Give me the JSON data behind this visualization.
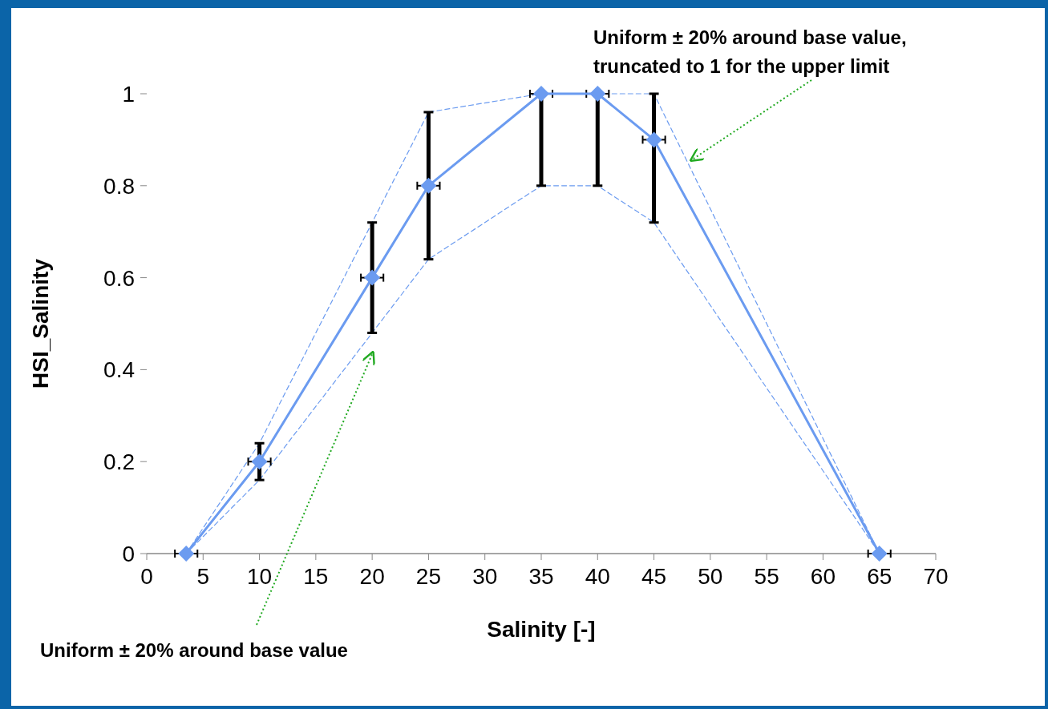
{
  "chart_data": {
    "type": "line",
    "xlabel": "Salinity [-]",
    "ylabel": "HSI_Salinity",
    "xlim": [
      0,
      70
    ],
    "xticks": [
      0,
      5,
      10,
      15,
      20,
      25,
      30,
      35,
      40,
      45,
      50,
      55,
      60,
      65,
      70
    ],
    "ylim": [
      0,
      1
    ],
    "yticks": [
      0,
      {
        "value": 0.2,
        "label": "0.2"
      },
      {
        "value": 0.4,
        "label": "0.4"
      },
      {
        "value": 0.6,
        "label": "0.6"
      },
      {
        "value": 0.8,
        "label": "0.8"
      },
      1
    ],
    "grid": false,
    "series": [
      {
        "color": "#6b9bf0",
        "line_style": "dashed",
        "x": [
          3.5,
          10,
          20,
          25,
          35,
          40,
          45,
          65
        ],
        "values": [
          0,
          0.24,
          0.72,
          0.96,
          1,
          1,
          1,
          0
        ]
      },
      {
        "color": "#6b9bf0",
        "line_style": "dashed",
        "x": [
          3.5,
          10,
          20,
          25,
          35,
          40,
          45,
          65
        ],
        "values": [
          0,
          0.16,
          0.48,
          0.64,
          0.8,
          0.8,
          0.72,
          0
        ]
      },
      {
        "color": "#6b9bf0",
        "marker": "diamond",
        "line_style": "solid",
        "x": [
          3.5,
          10,
          20,
          25,
          35,
          40,
          45,
          65
        ],
        "values": [
          0,
          0.2,
          0.6,
          0.8,
          1,
          1,
          0.9,
          0
        ],
        "errors": [
          null,
          [
            0.16,
            0.24
          ],
          [
            0.48,
            0.72
          ],
          [
            0.64,
            0.96
          ],
          [
            0.8,
            1
          ],
          [
            0.8,
            1
          ],
          [
            0.72,
            1
          ],
          null
        ],
        "xerrors": [
          1,
          1,
          1,
          1,
          1,
          1,
          1,
          1
        ]
      }
    ],
    "annotations": [
      "Uniform ± 20% around base value",
      "Uniform ± 20% around base value,\ntruncated to 1 for the upper limit"
    ]
  }
}
